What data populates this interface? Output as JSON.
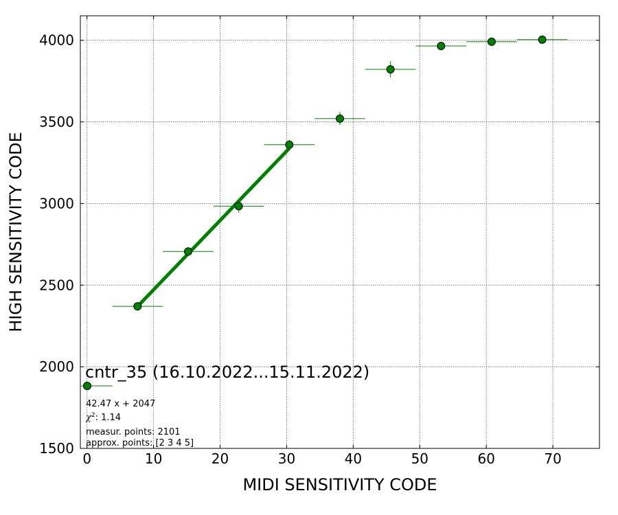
{
  "chart_data": {
    "type": "scatter",
    "xlabel": "MIDI SENSITIVITY CODE",
    "ylabel": "HIGH SENSITIVITY CODE",
    "xlim": [
      -1,
      77
    ],
    "ylim": [
      1500,
      4150
    ],
    "xticks": [
      "0",
      "10",
      "20",
      "30",
      "40",
      "50",
      "60",
      "70"
    ],
    "yticks": [
      "1500",
      "2000",
      "2500",
      "3000",
      "3500",
      "4000"
    ],
    "grid": true,
    "marker_color": "#008000",
    "points": [
      {
        "x": 7.6,
        "y": 2370,
        "xerr": 3.8,
        "yerr": 20
      },
      {
        "x": 15.2,
        "y": 2706,
        "xerr": 3.8,
        "yerr": 25
      },
      {
        "x": 22.8,
        "y": 2984,
        "xerr": 3.8,
        "yerr": 40
      },
      {
        "x": 30.4,
        "y": 3360,
        "xerr": 3.8,
        "yerr": 30
      },
      {
        "x": 38.0,
        "y": 3520,
        "xerr": 3.8,
        "yerr": 40
      },
      {
        "x": 45.6,
        "y": 3822,
        "xerr": 3.8,
        "yerr": 50
      },
      {
        "x": 53.2,
        "y": 3965,
        "xerr": 3.8,
        "yerr": 15
      },
      {
        "x": 60.8,
        "y": 3991,
        "xerr": 3.8,
        "yerr": 25
      },
      {
        "x": 68.4,
        "y": 4004,
        "xerr": 3.8,
        "yerr": 15
      }
    ],
    "fit": {
      "slope": 42.47,
      "intercept": 2047,
      "x_from": 7.6,
      "x_to": 30.4
    },
    "legend": {
      "title": "cntr_35 (16.10.2022...15.11.2022)",
      "equation": "42.47 x + 2047",
      "chi2_value": ": 1.14",
      "measur_points": "measur. points: 2101",
      "approx_points": "approx. points: [2 3 4 5]"
    }
  }
}
